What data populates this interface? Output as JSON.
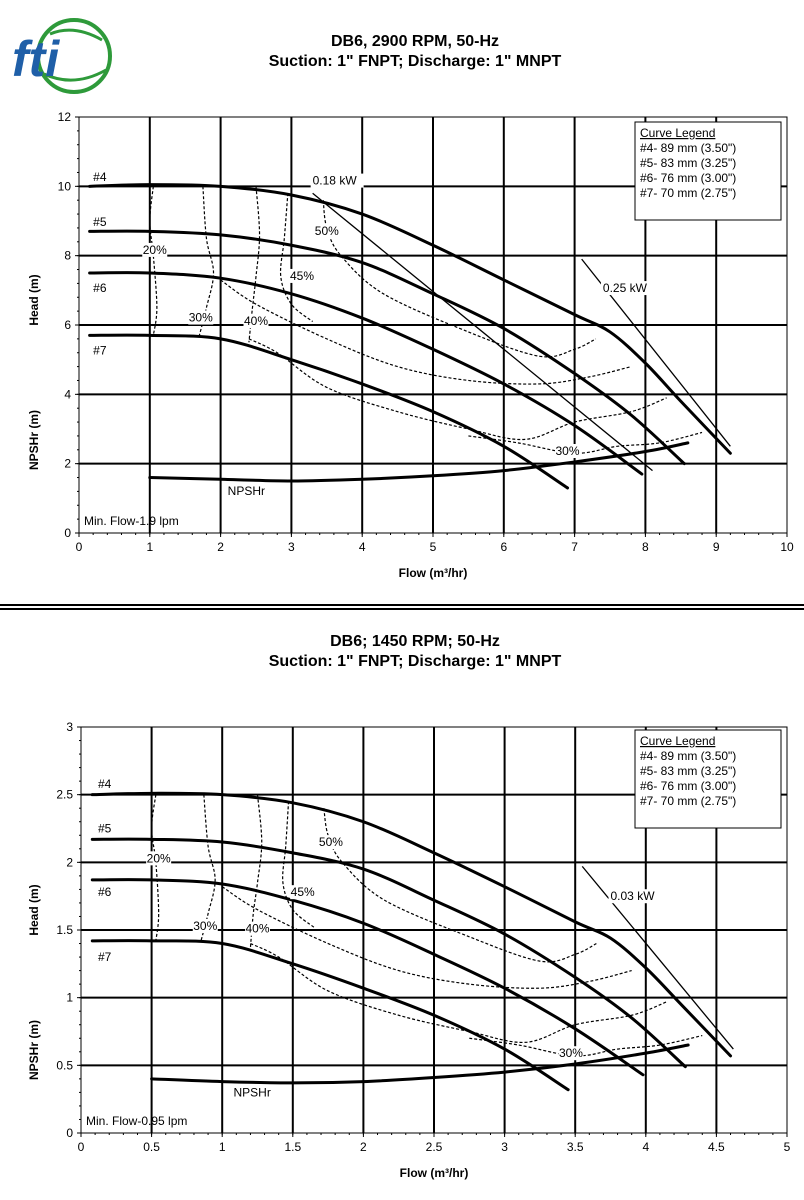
{
  "logo": {
    "text": "fti",
    "colors": {
      "blue": "#1f5fa8",
      "green": "#2e9a3a"
    }
  },
  "chart_data": [
    {
      "type": "line",
      "title": "DB6, 2900 RPM, 50-Hz",
      "subtitle": "Suction: 1\" FNPT; Discharge: 1\" MNPT",
      "xlabel": "Flow (m³/hr)",
      "ylabel_head": "Head (m)",
      "ylabel_npsh": "NPSHr (m)",
      "xlim": [
        0,
        10
      ],
      "ylim": [
        0,
        12
      ],
      "xticks": [
        "0",
        "1",
        "2",
        "3",
        "4",
        "5",
        "6",
        "7",
        "8",
        "9",
        "10"
      ],
      "yticks": [
        "0",
        "2",
        "4",
        "6",
        "8",
        "10",
        "12"
      ],
      "grid": true,
      "legend": {
        "placement": "top-right",
        "title": "Curve Legend",
        "entries": [
          "#4- 89 mm (3.50\")",
          "#5- 83 mm (3.25\")",
          "#6- 76 mm (3.00\")",
          "#7- 70 mm (2.75\")"
        ]
      },
      "series": [
        {
          "name": "#4",
          "x": [
            0.15,
            1,
            2,
            3,
            4,
            5,
            6,
            7,
            7.5,
            8,
            8.5,
            9.2
          ],
          "values": [
            10.0,
            10.05,
            10.0,
            9.75,
            9.2,
            8.3,
            7.3,
            6.3,
            5.8,
            4.9,
            3.8,
            2.3
          ]
        },
        {
          "name": "#5",
          "x": [
            0.15,
            1,
            2,
            3,
            4,
            5,
            6,
            7,
            7.8,
            8.55
          ],
          "values": [
            8.7,
            8.7,
            8.6,
            8.3,
            7.8,
            6.9,
            5.9,
            4.6,
            3.4,
            2.0
          ]
        },
        {
          "name": "#6",
          "x": [
            0.15,
            1,
            2,
            3,
            4,
            5,
            6,
            7,
            7.95
          ],
          "values": [
            7.5,
            7.5,
            7.35,
            6.9,
            6.2,
            5.3,
            4.3,
            3.1,
            1.7
          ]
        },
        {
          "name": "#7",
          "x": [
            0.15,
            1,
            2,
            3,
            4,
            5,
            6,
            6.9
          ],
          "values": [
            5.7,
            5.7,
            5.6,
            5.0,
            4.3,
            3.5,
            2.5,
            1.3
          ]
        },
        {
          "name": "NPSHr",
          "x": [
            1,
            2,
            3,
            4,
            5,
            6,
            7,
            8,
            8.6
          ],
          "values": [
            1.6,
            1.55,
            1.5,
            1.55,
            1.65,
            1.8,
            2.05,
            2.35,
            2.6
          ]
        }
      ],
      "efficiency_contours": [
        {
          "label": "20%",
          "x": [
            1.05,
            1.0,
            1.05,
            1.1,
            1.05
          ],
          "values": [
            10.0,
            9.0,
            8.0,
            6.5,
            5.7
          ]
        },
        {
          "label": "30%",
          "x": [
            1.75,
            1.8,
            1.9,
            1.8,
            1.7
          ],
          "values": [
            10.0,
            8.5,
            7.5,
            6.5,
            5.7
          ]
        },
        {
          "label": "40%",
          "x": [
            2.5,
            2.55,
            2.5,
            2.45,
            2.4
          ],
          "values": [
            10.0,
            8.6,
            7.4,
            6.5,
            5.5
          ]
        },
        {
          "label": "45%",
          "x": [
            2.95,
            2.9,
            2.85,
            3.0,
            3.3
          ],
          "values": [
            9.8,
            8.5,
            7.4,
            6.6,
            6.1
          ]
        },
        {
          "label": "50%",
          "x": [
            3.45,
            3.5,
            3.7,
            4.3,
            5.5,
            6.5,
            7.0,
            7.3
          ],
          "values": [
            9.6,
            8.8,
            8.0,
            6.9,
            5.8,
            5.1,
            5.3,
            5.6
          ]
        },
        {
          "label": "",
          "x": [
            2.0,
            2.5,
            3.5,
            4.5,
            5.5,
            6.5,
            7.2,
            7.8
          ],
          "values": [
            7.3,
            6.6,
            5.6,
            4.8,
            4.4,
            4.3,
            4.5,
            4.8
          ]
        },
        {
          "label": "",
          "x": [
            2.4,
            2.8,
            3.5,
            4.5,
            5.5,
            6.3,
            7.0,
            7.8,
            8.3
          ],
          "values": [
            5.6,
            5.2,
            4.2,
            3.5,
            3.0,
            2.7,
            3.2,
            3.5,
            3.9
          ]
        },
        {
          "label": "30%",
          "x": [
            5.5,
            6.2,
            7.0,
            7.6,
            8.2,
            8.8
          ],
          "values": [
            2.8,
            2.6,
            2.3,
            2.5,
            2.6,
            2.9
          ]
        }
      ],
      "power_lines": [
        {
          "label": "0.18 kW",
          "x": [
            3.3,
            8.1
          ],
          "values": [
            9.8,
            1.8
          ]
        },
        {
          "label": "0.25 kW",
          "x": [
            7.1,
            9.2
          ],
          "values": [
            7.9,
            2.5
          ]
        }
      ],
      "annotations": {
        "min_flow": "Min. Flow-1.9 lpm",
        "npshr_label": "NPSHr",
        "label_20": "20%",
        "label_30": "30%",
        "label_40": "40%",
        "label_45": "45%",
        "label_50": "50%",
        "label_30b": "30%",
        "kw1": "0.18 kW",
        "kw2": "0.25 kW"
      }
    },
    {
      "type": "line",
      "title": "DB6; 1450 RPM; 50-Hz",
      "subtitle": "Suction: 1\" FNPT; Discharge: 1\" MNPT",
      "xlabel": "Flow (m³/hr)",
      "ylabel_head": "Head (m)",
      "ylabel_npsh": "NPSHr (m)",
      "xlim": [
        0,
        5
      ],
      "ylim": [
        0,
        3
      ],
      "xticks": [
        "0",
        "0.5",
        "1",
        "1.5",
        "2",
        "2.5",
        "3",
        "3.5",
        "4",
        "4.5",
        "5"
      ],
      "yticks": [
        "0",
        "0.5",
        "1",
        "1.5",
        "2",
        "2.5",
        "3"
      ],
      "grid": true,
      "legend": {
        "placement": "top-right",
        "title": "Curve Legend",
        "entries": [
          "#4- 89 mm (3.50\")",
          "#5- 83 mm (3.25\")",
          "#6- 76 mm (3.00\")",
          "#7- 70 mm (2.75\")"
        ]
      },
      "series": [
        {
          "name": "#4",
          "x": [
            0.08,
            0.5,
            1,
            1.5,
            2,
            2.5,
            3,
            3.5,
            3.75,
            4,
            4.25,
            4.6
          ],
          "values": [
            2.5,
            2.51,
            2.5,
            2.44,
            2.3,
            2.07,
            1.82,
            1.56,
            1.44,
            1.22,
            0.95,
            0.57
          ]
        },
        {
          "name": "#5",
          "x": [
            0.08,
            0.5,
            1,
            1.5,
            2,
            2.5,
            3,
            3.5,
            3.9,
            4.28
          ],
          "values": [
            2.17,
            2.17,
            2.15,
            2.07,
            1.95,
            1.72,
            1.47,
            1.15,
            0.85,
            0.49
          ]
        },
        {
          "name": "#6",
          "x": [
            0.08,
            0.5,
            1,
            1.5,
            2,
            2.5,
            3,
            3.5,
            3.98
          ],
          "values": [
            1.87,
            1.87,
            1.84,
            1.72,
            1.55,
            1.32,
            1.07,
            0.77,
            0.43
          ]
        },
        {
          "name": "#7",
          "x": [
            0.08,
            0.5,
            1,
            1.5,
            2,
            2.5,
            3,
            3.45
          ],
          "values": [
            1.42,
            1.42,
            1.4,
            1.25,
            1.07,
            0.87,
            0.62,
            0.32
          ]
        },
        {
          "name": "NPSHr",
          "x": [
            0.5,
            1,
            1.5,
            2,
            2.5,
            3,
            3.5,
            4,
            4.3
          ],
          "values": [
            0.4,
            0.38,
            0.37,
            0.38,
            0.41,
            0.45,
            0.51,
            0.59,
            0.65
          ]
        }
      ],
      "efficiency_contours": [
        {
          "label": "20%",
          "x": [
            0.53,
            0.5,
            0.53,
            0.55,
            0.53
          ],
          "values": [
            2.5,
            2.25,
            2.0,
            1.62,
            1.42
          ]
        },
        {
          "label": "30%",
          "x": [
            0.87,
            0.9,
            0.95,
            0.9,
            0.85
          ],
          "values": [
            2.5,
            2.12,
            1.87,
            1.62,
            1.42
          ]
        },
        {
          "label": "40%",
          "x": [
            1.25,
            1.28,
            1.25,
            1.22,
            1.2
          ],
          "values": [
            2.5,
            2.15,
            1.85,
            1.62,
            1.37
          ]
        },
        {
          "label": "45%",
          "x": [
            1.47,
            1.45,
            1.43,
            1.5,
            1.65
          ],
          "values": [
            2.45,
            2.12,
            1.85,
            1.65,
            1.52
          ]
        },
        {
          "label": "50%",
          "x": [
            1.72,
            1.75,
            1.85,
            2.15,
            2.75,
            3.25,
            3.5,
            3.65
          ],
          "values": [
            2.4,
            2.2,
            2.0,
            1.72,
            1.45,
            1.27,
            1.32,
            1.4
          ]
        },
        {
          "label": "",
          "x": [
            1.0,
            1.25,
            1.75,
            2.25,
            2.75,
            3.25,
            3.6,
            3.9
          ],
          "values": [
            1.82,
            1.65,
            1.4,
            1.2,
            1.1,
            1.07,
            1.12,
            1.2
          ]
        },
        {
          "label": "",
          "x": [
            1.2,
            1.4,
            1.75,
            2.25,
            2.75,
            3.15,
            3.5,
            3.9,
            4.15
          ],
          "values": [
            1.4,
            1.3,
            1.05,
            0.87,
            0.75,
            0.67,
            0.8,
            0.87,
            0.97
          ]
        },
        {
          "label": "30%",
          "x": [
            2.75,
            3.1,
            3.5,
            3.8,
            4.1,
            4.4
          ],
          "values": [
            0.7,
            0.65,
            0.57,
            0.62,
            0.65,
            0.72
          ]
        }
      ],
      "power_lines": [
        {
          "label": "0.03 kW",
          "x": [
            3.55,
            4.62
          ],
          "values": [
            1.97,
            0.62
          ]
        }
      ],
      "annotations": {
        "min_flow": "Min. Flow-0.95 lpm",
        "npshr_label": "NPSHr",
        "label_20": "20%",
        "label_30": "30%",
        "label_40": "40%",
        "label_45": "45%",
        "label_50": "50%",
        "label_30b": "30%",
        "kw1": "0.03 kW"
      }
    }
  ]
}
